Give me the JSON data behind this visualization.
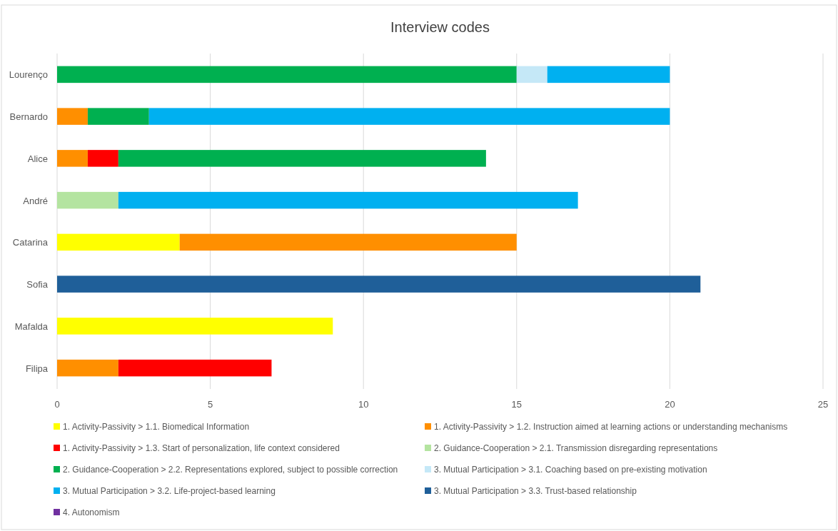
{
  "chart_data": {
    "type": "bar",
    "orientation": "horizontal",
    "stacked": true,
    "title": "Interview codes",
    "categories": [
      "Lourenço",
      "Bernardo",
      "Alice",
      "André",
      "Catarina",
      "Sofia",
      "Mafalda",
      "Filipa"
    ],
    "series": [
      {
        "name": "1. Activity-Passivity > 1.1. Biomedical Information",
        "color": "#ffff00",
        "values": [
          null,
          null,
          null,
          null,
          4,
          null,
          9,
          null
        ]
      },
      {
        "name": "1. Activity-Passivity > 1.2. Instruction aimed at learning actions or understanding mechanisms",
        "color": "#ff8f00",
        "values": [
          null,
          1,
          1,
          null,
          11,
          null,
          null,
          2
        ]
      },
      {
        "name": "1. Activity-Passivity > 1.3. Start of personalization, life context considered",
        "color": "#ff0000",
        "values": [
          null,
          null,
          1,
          null,
          null,
          null,
          null,
          5
        ]
      },
      {
        "name": "2. Guidance-Cooperation > 2.1. Transmission disregarding representations",
        "color": "#b4e4a0",
        "values": [
          null,
          null,
          null,
          2,
          null,
          null,
          null,
          null
        ]
      },
      {
        "name": "2. Guidance-Cooperation > 2.2. Representations explored, subject to possible correction",
        "color": "#00b050",
        "values": [
          15,
          2,
          12,
          null,
          null,
          null,
          null,
          null
        ]
      },
      {
        "name": "3. Mutual Participation > 3.1. Coaching based on pre-existing motivation",
        "color": "#c5e8f7",
        "values": [
          1,
          null,
          null,
          null,
          null,
          null,
          null,
          null
        ]
      },
      {
        "name": "3. Mutual Participation > 3.2. Life-project-based learning",
        "color": "#00b0f0",
        "values": [
          4,
          17,
          null,
          15,
          null,
          null,
          null,
          null
        ]
      },
      {
        "name": "3. Mutual Participation > 3.3. Trust-based relationship",
        "color": "#1f5f99",
        "values": [
          null,
          null,
          null,
          null,
          null,
          21,
          null,
          null
        ]
      },
      {
        "name": "4. Autonomism",
        "color": "#7030a0",
        "values": [
          null,
          null,
          null,
          null,
          null,
          null,
          null,
          null
        ]
      }
    ],
    "xlim": [
      0,
      25
    ],
    "xticks": [
      0,
      5,
      10,
      15,
      20,
      25
    ],
    "grid": "x",
    "legend": "bottom"
  }
}
